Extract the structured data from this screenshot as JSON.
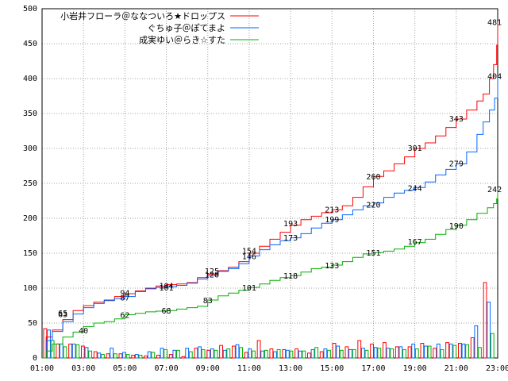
{
  "chart_data": {
    "type": "line",
    "x_ticks": [
      "01:00",
      "03:00",
      "05:00",
      "07:00",
      "09:00",
      "11:00",
      "13:00",
      "15:00",
      "17:00",
      "19:00",
      "21:00",
      "23:00"
    ],
    "ylim": [
      0,
      500
    ],
    "y_ticks": [
      0,
      50,
      100,
      150,
      200,
      250,
      300,
      350,
      400,
      450,
      500
    ],
    "grid": true,
    "legend_position": "top-left",
    "series": [
      {
        "name": "小岩井フローラ＠ななついろ★ドロップス",
        "color": "#ff0000",
        "points": [
          [
            1.0,
            0
          ],
          [
            1.2,
            30
          ],
          [
            1.5,
            40
          ],
          [
            2.0,
            55
          ],
          [
            2.5,
            68
          ],
          [
            3.0,
            75
          ],
          [
            3.5,
            80
          ],
          [
            4.0,
            83
          ],
          [
            4.5,
            88
          ],
          [
            5.0,
            92
          ],
          [
            5.5,
            96
          ],
          [
            6.0,
            100
          ],
          [
            6.5,
            103
          ],
          [
            7.0,
            105
          ],
          [
            7.5,
            106
          ],
          [
            8.0,
            108
          ],
          [
            8.5,
            115
          ],
          [
            9.0,
            120
          ],
          [
            9.5,
            125
          ],
          [
            10.0,
            130
          ],
          [
            10.5,
            138
          ],
          [
            11.0,
            150
          ],
          [
            11.5,
            160
          ],
          [
            12.0,
            170
          ],
          [
            12.5,
            180
          ],
          [
            13.0,
            190
          ],
          [
            13.5,
            198
          ],
          [
            14.0,
            203
          ],
          [
            14.5,
            208
          ],
          [
            15.0,
            212
          ],
          [
            15.5,
            218
          ],
          [
            16.0,
            230
          ],
          [
            16.5,
            245
          ],
          [
            17.0,
            260
          ],
          [
            17.5,
            268
          ],
          [
            18.0,
            278
          ],
          [
            18.5,
            288
          ],
          [
            19.0,
            300
          ],
          [
            19.5,
            308
          ],
          [
            20.0,
            318
          ],
          [
            20.5,
            330
          ],
          [
            21.0,
            342
          ],
          [
            21.5,
            355
          ],
          [
            22.0,
            368
          ],
          [
            22.3,
            378
          ],
          [
            22.6,
            400
          ],
          [
            22.8,
            420
          ],
          [
            22.95,
            448
          ],
          [
            23.0,
            481
          ]
        ],
        "labels": [
          {
            "x": 2.0,
            "y": 63,
            "text": "63"
          },
          {
            "x": 2.0,
            "y": 65,
            "text": "65"
          },
          {
            "x": 5.0,
            "y": 94,
            "text": "94"
          },
          {
            "x": 7.0,
            "y": 104,
            "text": "104"
          },
          {
            "x": 9.2,
            "y": 125,
            "text": "125"
          },
          {
            "x": 11.0,
            "y": 154,
            "text": "154"
          },
          {
            "x": 13.0,
            "y": 193,
            "text": "193"
          },
          {
            "x": 15.0,
            "y": 213,
            "text": "213"
          },
          {
            "x": 17.0,
            "y": 260,
            "text": "260"
          },
          {
            "x": 19.0,
            "y": 301,
            "text": "301"
          },
          {
            "x": 21.0,
            "y": 343,
            "text": "343"
          },
          {
            "x": 22.85,
            "y": 481,
            "text": "481"
          }
        ]
      },
      {
        "name": "ぐちゅ子＠ぽてまよ",
        "color": "#0066ff",
        "points": [
          [
            1.0,
            0
          ],
          [
            1.2,
            25
          ],
          [
            1.5,
            38
          ],
          [
            2.0,
            52
          ],
          [
            2.5,
            63
          ],
          [
            3.0,
            72
          ],
          [
            3.5,
            78
          ],
          [
            4.0,
            82
          ],
          [
            4.5,
            85
          ],
          [
            5.0,
            88
          ],
          [
            5.5,
            95
          ],
          [
            6.0,
            99
          ],
          [
            6.5,
            101
          ],
          [
            7.0,
            102
          ],
          [
            7.5,
            104
          ],
          [
            8.0,
            107
          ],
          [
            8.5,
            113
          ],
          [
            9.0,
            118
          ],
          [
            9.5,
            124
          ],
          [
            10.0,
            128
          ],
          [
            10.5,
            135
          ],
          [
            11.0,
            146
          ],
          [
            11.5,
            155
          ],
          [
            12.0,
            162
          ],
          [
            12.5,
            168
          ],
          [
            13.0,
            172
          ],
          [
            13.5,
            178
          ],
          [
            14.0,
            186
          ],
          [
            14.5,
            193
          ],
          [
            15.0,
            198
          ],
          [
            15.5,
            205
          ],
          [
            16.0,
            212
          ],
          [
            16.5,
            218
          ],
          [
            17.0,
            222
          ],
          [
            17.5,
            230
          ],
          [
            18.0,
            236
          ],
          [
            18.5,
            240
          ],
          [
            19.0,
            244
          ],
          [
            19.5,
            252
          ],
          [
            20.0,
            262
          ],
          [
            20.5,
            270
          ],
          [
            21.0,
            278
          ],
          [
            21.5,
            295
          ],
          [
            22.0,
            320
          ],
          [
            22.3,
            338
          ],
          [
            22.6,
            355
          ],
          [
            22.85,
            372
          ],
          [
            23.0,
            404
          ]
        ],
        "labels": [
          {
            "x": 5.0,
            "y": 87,
            "text": "87"
          },
          {
            "x": 7.0,
            "y": 101,
            "text": "101"
          },
          {
            "x": 9.2,
            "y": 120,
            "text": "120"
          },
          {
            "x": 11.0,
            "y": 146,
            "text": "146"
          },
          {
            "x": 13.0,
            "y": 173,
            "text": "173"
          },
          {
            "x": 15.0,
            "y": 199,
            "text": "199"
          },
          {
            "x": 17.0,
            "y": 220,
            "text": "220"
          },
          {
            "x": 19.0,
            "y": 244,
            "text": "244"
          },
          {
            "x": 21.0,
            "y": 279,
            "text": "279"
          },
          {
            "x": 22.85,
            "y": 404,
            "text": "404"
          }
        ]
      },
      {
        "name": "成実ゆい＠らき☆すた",
        "color": "#00b000",
        "points": [
          [
            1.0,
            0
          ],
          [
            1.2,
            10
          ],
          [
            1.5,
            20
          ],
          [
            2.0,
            30
          ],
          [
            2.5,
            37
          ],
          [
            3.0,
            45
          ],
          [
            3.5,
            50
          ],
          [
            4.0,
            52
          ],
          [
            4.5,
            56
          ],
          [
            5.0,
            62
          ],
          [
            5.5,
            64
          ],
          [
            6.0,
            66
          ],
          [
            6.5,
            67
          ],
          [
            7.0,
            68
          ],
          [
            7.5,
            70
          ],
          [
            8.0,
            72
          ],
          [
            8.5,
            74
          ],
          [
            9.0,
            83
          ],
          [
            9.5,
            89
          ],
          [
            10.0,
            93
          ],
          [
            10.5,
            97
          ],
          [
            11.0,
            101
          ],
          [
            11.5,
            106
          ],
          [
            12.0,
            111
          ],
          [
            12.5,
            115
          ],
          [
            13.0,
            118
          ],
          [
            13.5,
            123
          ],
          [
            14.0,
            128
          ],
          [
            14.5,
            130
          ],
          [
            15.0,
            133
          ],
          [
            15.5,
            138
          ],
          [
            16.0,
            144
          ],
          [
            16.5,
            149
          ],
          [
            17.0,
            151
          ],
          [
            17.5,
            153
          ],
          [
            18.0,
            156
          ],
          [
            18.5,
            160
          ],
          [
            19.0,
            165
          ],
          [
            19.5,
            170
          ],
          [
            20.0,
            177
          ],
          [
            20.5,
            184
          ],
          [
            21.0,
            190
          ],
          [
            21.5,
            198
          ],
          [
            22.0,
            207
          ],
          [
            22.5,
            215
          ],
          [
            22.8,
            221
          ],
          [
            22.95,
            228
          ],
          [
            23.0,
            242
          ]
        ],
        "labels": [
          {
            "x": 3.0,
            "y": 40,
            "text": "40"
          },
          {
            "x": 5.0,
            "y": 62,
            "text": "62"
          },
          {
            "x": 7.0,
            "y": 68,
            "text": "68"
          },
          {
            "x": 9.0,
            "y": 83,
            "text": "83"
          },
          {
            "x": 11.0,
            "y": 101,
            "text": "101"
          },
          {
            "x": 13.0,
            "y": 118,
            "text": "118"
          },
          {
            "x": 15.0,
            "y": 133,
            "text": "133"
          },
          {
            "x": 17.0,
            "y": 151,
            "text": "151"
          },
          {
            "x": 19.0,
            "y": 167,
            "text": "167"
          },
          {
            "x": 21.0,
            "y": 190,
            "text": "190"
          },
          {
            "x": 22.85,
            "y": 242,
            "text": "242"
          }
        ]
      }
    ],
    "bar_series": [
      {
        "name": "小岩井フローラ＠ななついろ★ドロップス",
        "color": "#ff0000",
        "values": [
          42,
          20,
          20,
          17,
          9,
          6,
          6,
          4,
          3,
          4,
          5,
          2,
          14,
          11,
          18,
          17,
          8,
          25,
          13,
          12,
          13,
          7,
          9,
          21,
          16,
          25,
          20,
          22,
          16,
          16,
          21,
          14,
          22,
          21,
          29,
          108
        ]
      },
      {
        "name": "ぐちゅ子＠ぽてまよ",
        "color": "#0066ff",
        "values": [
          40,
          20,
          20,
          15,
          7,
          14,
          8,
          5,
          9,
          14,
          11,
          14,
          16,
          13,
          11,
          19,
          13,
          10,
          9,
          11,
          10,
          12,
          13,
          17,
          12,
          14,
          15,
          14,
          16,
          20,
          17,
          20,
          20,
          20,
          46,
          80
        ]
      },
      {
        "name": "成実ゆい＠らき☆すた",
        "color": "#00b000",
        "values": [
          25,
          16,
          19,
          10,
          5,
          6,
          5,
          4,
          8,
          12,
          11,
          9,
          12,
          11,
          13,
          15,
          10,
          11,
          12,
          10,
          10,
          15,
          11,
          11,
          12,
          11,
          14,
          13,
          12,
          13,
          17,
          12,
          18,
          19,
          15,
          35
        ]
      }
    ]
  }
}
